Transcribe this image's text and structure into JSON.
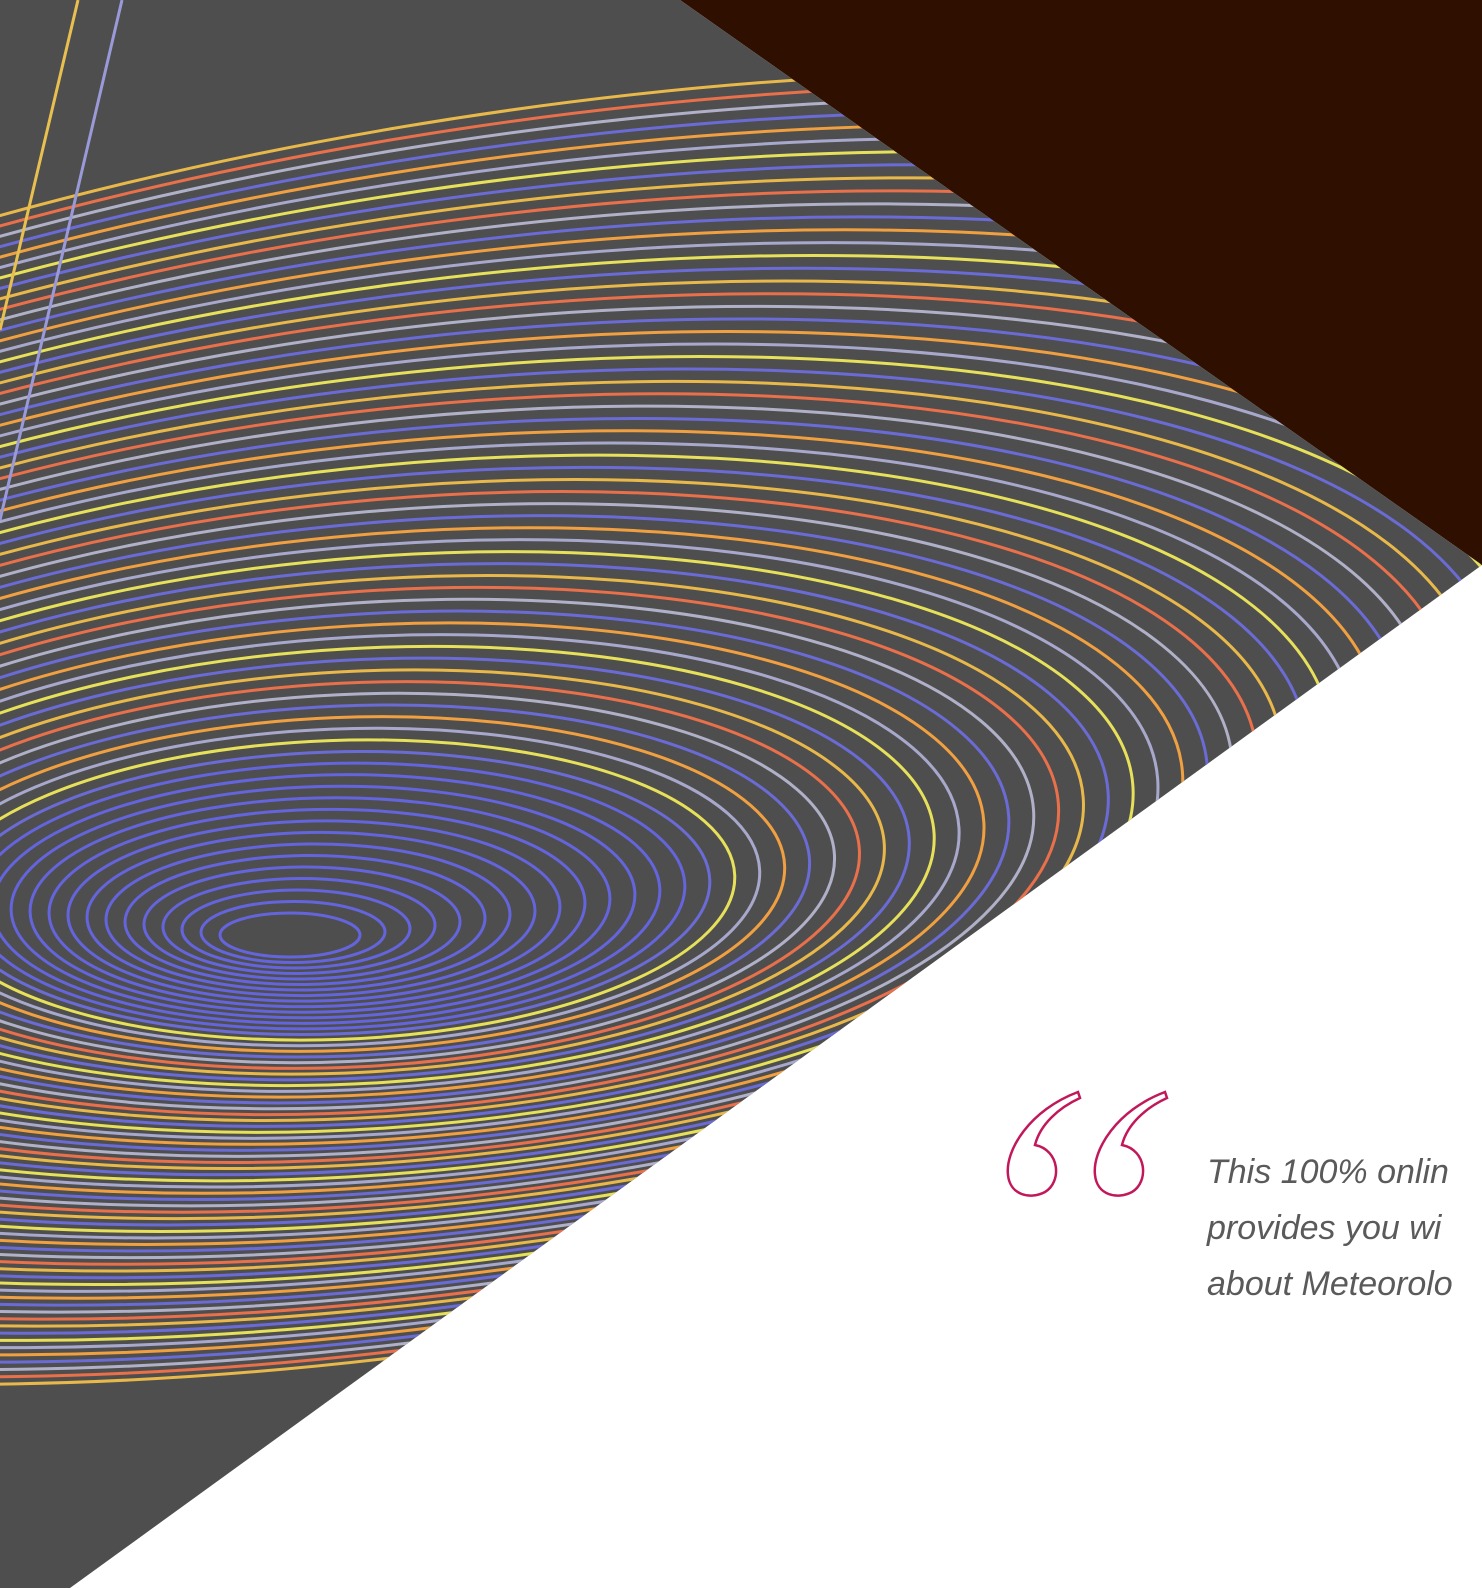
{
  "quote": {
    "lines": [
      "This 100% onlin",
      "provides you wi",
      "about Meteorolo"
    ]
  }
}
